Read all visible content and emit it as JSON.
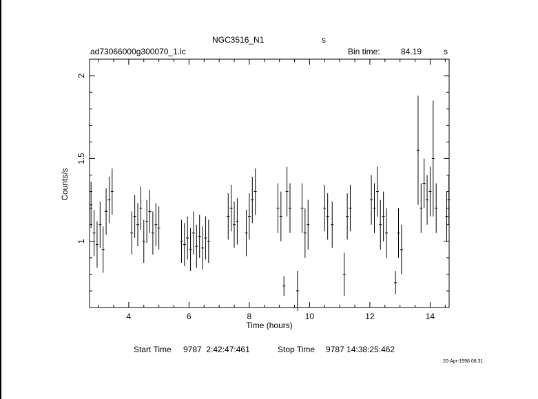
{
  "header": {
    "object": "NGC3516_N1",
    "object_unit": "s",
    "file": "ad73066000g300070_1.lc",
    "bin_label": "Bin time:",
    "bin_value": "84.19",
    "bin_unit": "s"
  },
  "footer": {
    "start_label": "Start Time",
    "start_value": "9787  2:42:47:461",
    "stop_label": "Stop Time",
    "stop_value": "9787 14:38:25:462",
    "date": "20-Apr-1998 08:31"
  },
  "chart_data": {
    "type": "scatter",
    "title": "NGC3516_N1",
    "xlabel": "Time (hours)",
    "ylabel": "Counts/s",
    "xlim": [
      2.7,
      14.63
    ],
    "ylim": [
      0.6,
      2.1
    ],
    "xticks": [
      4,
      6,
      8,
      10,
      12,
      14
    ],
    "yticks": [
      1,
      1.5,
      2
    ],
    "ytick_labels": [
      "1",
      "1.5",
      "2"
    ],
    "grid": false,
    "series": [
      {
        "points": [
          {
            "x": 2.75,
            "y": 1.22,
            "err": 0.14
          },
          {
            "x": 2.85,
            "y": 1.05,
            "err": 0.14
          },
          {
            "x": 2.95,
            "y": 0.98,
            "err": 0.14
          },
          {
            "x": 3.05,
            "y": 1.1,
            "err": 0.14
          },
          {
            "x": 3.15,
            "y": 0.95,
            "err": 0.14
          },
          {
            "x": 3.25,
            "y": 1.18,
            "err": 0.14
          },
          {
            "x": 3.35,
            "y": 1.25,
            "err": 0.14
          },
          {
            "x": 3.45,
            "y": 1.3,
            "err": 0.14
          },
          {
            "x": 4.1,
            "y": 1.05,
            "err": 0.13
          },
          {
            "x": 4.2,
            "y": 1.15,
            "err": 0.13
          },
          {
            "x": 4.3,
            "y": 1.1,
            "err": 0.13
          },
          {
            "x": 4.4,
            "y": 1.2,
            "err": 0.13
          },
          {
            "x": 4.5,
            "y": 1.0,
            "err": 0.13
          },
          {
            "x": 4.6,
            "y": 1.12,
            "err": 0.13
          },
          {
            "x": 4.7,
            "y": 1.18,
            "err": 0.13
          },
          {
            "x": 4.8,
            "y": 1.05,
            "err": 0.13
          },
          {
            "x": 4.9,
            "y": 1.1,
            "err": 0.13
          },
          {
            "x": 5.0,
            "y": 1.08,
            "err": 0.13
          },
          {
            "x": 5.75,
            "y": 1.0,
            "err": 0.13
          },
          {
            "x": 5.85,
            "y": 0.98,
            "err": 0.13
          },
          {
            "x": 5.95,
            "y": 1.02,
            "err": 0.13
          },
          {
            "x": 6.05,
            "y": 0.95,
            "err": 0.13
          },
          {
            "x": 6.15,
            "y": 1.05,
            "err": 0.13
          },
          {
            "x": 6.25,
            "y": 0.97,
            "err": 0.13
          },
          {
            "x": 6.35,
            "y": 1.03,
            "err": 0.13
          },
          {
            "x": 6.45,
            "y": 0.96,
            "err": 0.13
          },
          {
            "x": 6.55,
            "y": 1.02,
            "err": 0.13
          },
          {
            "x": 6.65,
            "y": 1.0,
            "err": 0.13
          },
          {
            "x": 7.3,
            "y": 1.15,
            "err": 0.14
          },
          {
            "x": 7.4,
            "y": 1.2,
            "err": 0.14
          },
          {
            "x": 7.5,
            "y": 1.1,
            "err": 0.14
          },
          {
            "x": 7.6,
            "y": 1.12,
            "err": 0.14
          },
          {
            "x": 7.9,
            "y": 1.05,
            "err": 0.14
          },
          {
            "x": 8.0,
            "y": 1.15,
            "err": 0.14
          },
          {
            "x": 8.1,
            "y": 1.25,
            "err": 0.14
          },
          {
            "x": 8.2,
            "y": 1.3,
            "err": 0.14
          },
          {
            "x": 8.95,
            "y": 1.2,
            "err": 0.15
          },
          {
            "x": 9.05,
            "y": 1.15,
            "err": 0.15
          },
          {
            "x": 9.15,
            "y": 0.73,
            "err": 0.06
          },
          {
            "x": 9.25,
            "y": 1.3,
            "err": 0.15
          },
          {
            "x": 9.35,
            "y": 1.2,
            "err": 0.15
          },
          {
            "x": 9.6,
            "y": 0.7,
            "err": 0.12
          },
          {
            "x": 9.75,
            "y": 1.2,
            "err": 0.15
          },
          {
            "x": 9.85,
            "y": 1.05,
            "err": 0.15
          },
          {
            "x": 9.95,
            "y": 1.1,
            "err": 0.15
          },
          {
            "x": 10.5,
            "y": 1.2,
            "err": 0.14
          },
          {
            "x": 10.6,
            "y": 1.15,
            "err": 0.14
          },
          {
            "x": 10.75,
            "y": 1.1,
            "err": 0.14
          },
          {
            "x": 11.15,
            "y": 0.8,
            "err": 0.13
          },
          {
            "x": 11.25,
            "y": 1.15,
            "err": 0.14
          },
          {
            "x": 11.35,
            "y": 1.2,
            "err": 0.14
          },
          {
            "x": 12.05,
            "y": 1.25,
            "err": 0.15
          },
          {
            "x": 12.15,
            "y": 1.2,
            "err": 0.15
          },
          {
            "x": 12.25,
            "y": 1.3,
            "err": 0.15
          },
          {
            "x": 12.35,
            "y": 1.1,
            "err": 0.15
          },
          {
            "x": 12.45,
            "y": 1.15,
            "err": 0.15
          },
          {
            "x": 12.55,
            "y": 1.05,
            "err": 0.15
          },
          {
            "x": 12.85,
            "y": 0.75,
            "err": 0.07
          },
          {
            "x": 12.95,
            "y": 1.05,
            "err": 0.15
          },
          {
            "x": 13.05,
            "y": 0.95,
            "err": 0.15
          },
          {
            "x": 13.6,
            "y": 1.55,
            "err": 0.33
          },
          {
            "x": 13.7,
            "y": 1.2,
            "err": 0.15
          },
          {
            "x": 13.8,
            "y": 1.35,
            "err": 0.15
          },
          {
            "x": 13.9,
            "y": 1.25,
            "err": 0.15
          },
          {
            "x": 14.0,
            "y": 1.3,
            "err": 0.15
          },
          {
            "x": 14.1,
            "y": 1.5,
            "err": 0.35
          },
          {
            "x": 14.2,
            "y": 1.2,
            "err": 0.15
          },
          {
            "x": 14.55,
            "y": 1.15,
            "err": 0.15
          },
          {
            "x": 14.62,
            "y": 1.25,
            "err": 0.15
          }
        ]
      }
    ]
  }
}
